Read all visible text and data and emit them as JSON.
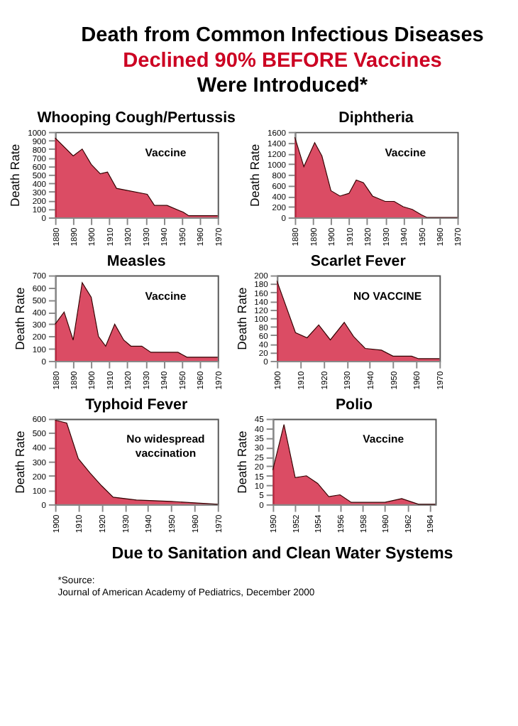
{
  "chart_data": [
    {
      "type": "other",
      "title": "Death from Common Infectious Diseases",
      "subtitle": "Declined 90% BEFORE Vaccines\nWere Introduced*"
    },
    {
      "type": "area",
      "title": "Whooping Cough/Pertussis",
      "ylabel": "Death Rate",
      "color": "#cc0022",
      "x": [
        1880,
        1890,
        1895,
        1900,
        1905,
        1909,
        1914,
        1931,
        1935,
        1942,
        1951,
        1954,
        1970
      ],
      "values": [
        930,
        720,
        800,
        620,
        510,
        530,
        340,
        270,
        140,
        140,
        60,
        20,
        20
      ],
      "xlim": [
        1880,
        1970
      ],
      "xticks": [
        1880,
        1890,
        1900,
        1910,
        1920,
        1930,
        1940,
        1950,
        1960,
        1970
      ],
      "ylim": [
        0,
        1000
      ],
      "yticks": [
        0,
        100,
        200,
        300,
        400,
        500,
        600,
        700,
        800,
        900,
        1000
      ],
      "annotations": [
        "Vaccine"
      ]
    },
    {
      "type": "area",
      "title": "Diphtheria",
      "ylabel": "Death Rate",
      "color": "#cc0022",
      "x": [
        1880,
        1885,
        1891,
        1895,
        1900,
        1905,
        1910,
        1914,
        1918,
        1923,
        1930,
        1935,
        1940,
        1945,
        1950,
        1953,
        1958,
        1970
      ],
      "values": [
        1500,
        950,
        1400,
        1150,
        500,
        400,
        450,
        700,
        650,
        400,
        300,
        300,
        200,
        150,
        50,
        0,
        0,
        0
      ],
      "xlim": [
        1880,
        1970
      ],
      "xticks": [
        1880,
        1890,
        1900,
        1910,
        1920,
        1930,
        1940,
        1950,
        1960,
        1970
      ],
      "ylim": [
        0,
        1600
      ],
      "yticks": [
        0,
        200,
        400,
        600,
        800,
        1000,
        1200,
        1400,
        1600
      ],
      "annotations": [
        "Vaccine"
      ]
    },
    {
      "type": "area",
      "title": "Measles",
      "ylabel": "Death Rate",
      "color": "#cc0022",
      "x": [
        1880,
        1885,
        1890,
        1895,
        1900,
        1904,
        1908,
        1913,
        1918,
        1922,
        1928,
        1933,
        1940,
        1948,
        1953,
        1970
      ],
      "values": [
        300,
        400,
        170,
        640,
        520,
        200,
        120,
        300,
        170,
        120,
        120,
        70,
        70,
        70,
        30,
        30
      ],
      "xlim": [
        1880,
        1970
      ],
      "xticks": [
        1880,
        1890,
        1900,
        1910,
        1920,
        1930,
        1940,
        1950,
        1960,
        1970
      ],
      "ylim": [
        0,
        700
      ],
      "yticks": [
        0,
        100,
        200,
        300,
        400,
        500,
        600,
        700
      ],
      "annotations": [
        "Vaccine"
      ]
    },
    {
      "type": "area",
      "title": "Scarlet Fever",
      "ylabel": "Death Rate",
      "color": "#cc0022",
      "x": [
        1900,
        1908,
        1913,
        1918,
        1923,
        1929,
        1933,
        1938,
        1945,
        1950,
        1958,
        1961,
        1970
      ],
      "values": [
        187,
        66,
        54,
        84,
        49,
        90,
        57,
        29,
        25,
        11,
        11,
        5,
        5
      ],
      "xlim": [
        1900,
        1970
      ],
      "xticks": [
        1900,
        1910,
        1920,
        1930,
        1940,
        1950,
        1960,
        1970
      ],
      "ylim": [
        0,
        200
      ],
      "yticks": [
        0,
        20,
        40,
        60,
        80,
        100,
        120,
        140,
        160,
        180,
        200
      ],
      "annotations": [
        "NO VACCINE"
      ]
    },
    {
      "type": "area",
      "title": "Typhoid Fever",
      "ylabel": "Death Rate",
      "color": "#cc0022",
      "x": [
        1900,
        1905,
        1910,
        1915,
        1920,
        1925,
        1935,
        1950,
        1960,
        1970
      ],
      "values": [
        590,
        570,
        320,
        220,
        130,
        50,
        30,
        20,
        10,
        0
      ],
      "xlim": [
        1900,
        1970
      ],
      "xticks": [
        1900,
        1910,
        1920,
        1930,
        1940,
        1950,
        1960,
        1970
      ],
      "ylim": [
        0,
        600
      ],
      "yticks": [
        0,
        100,
        200,
        300,
        400,
        500,
        600
      ],
      "annotations": [
        "No widespread\nvaccination"
      ]
    },
    {
      "type": "area",
      "title": "Polio",
      "ylabel": "Death Rate",
      "color": "#cc0022",
      "x": [
        1950,
        1951,
        1952,
        1953,
        1954,
        1955,
        1956,
        1957,
        1960,
        1961.5,
        1963,
        1964.5
      ],
      "values": [
        18,
        42,
        14,
        15,
        11,
        4,
        5,
        1,
        1,
        3,
        0,
        0
      ],
      "xlim": [
        1950,
        1964.5
      ],
      "xticks": [
        1950,
        1952,
        1954,
        1956,
        1958,
        1960,
        1962,
        1964
      ],
      "ylim": [
        0,
        45
      ],
      "yticks": [
        0,
        5,
        10,
        15,
        20,
        25,
        30,
        35,
        40,
        45
      ],
      "annotations": [
        "Vaccine"
      ]
    },
    {
      "type": "other",
      "title": "Due to Sanitation and Clean Water Systems",
      "annotations": [
        "*Source:",
        "Journal of American Academy of Pediatrics, December 2000"
      ]
    }
  ]
}
